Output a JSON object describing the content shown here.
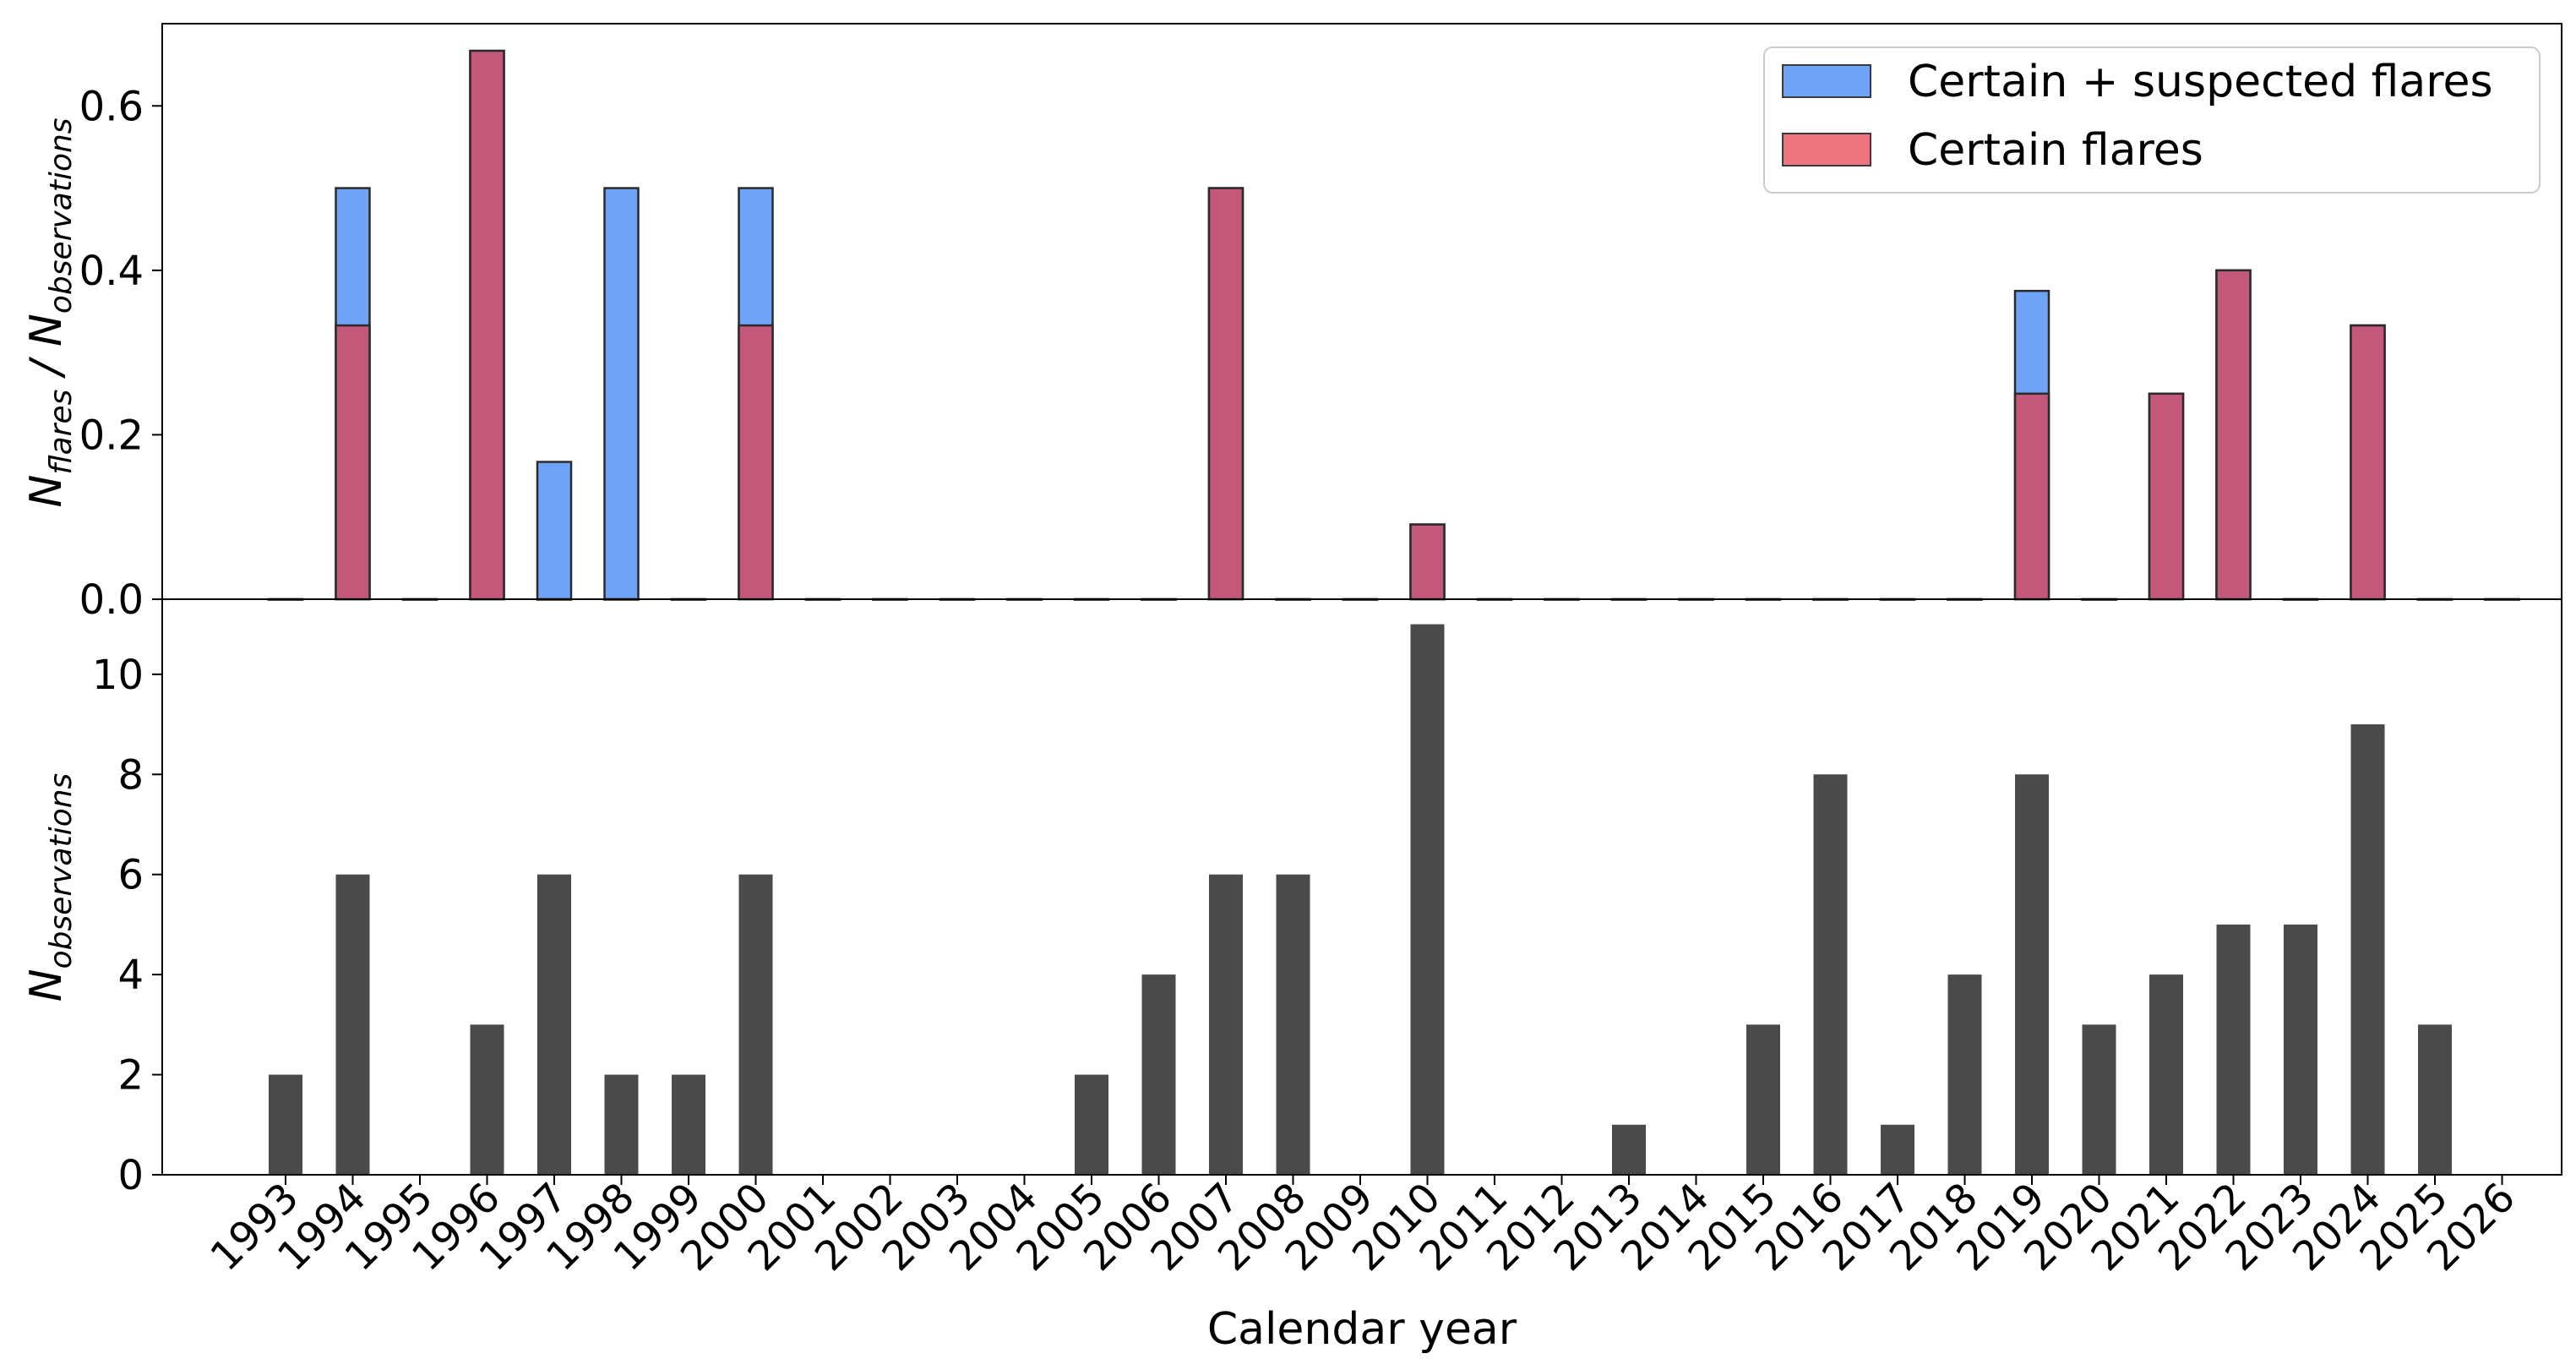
{
  "chart_data": [
    {
      "type": "bar",
      "panel": "top",
      "ylabel": "N_flares / N_observations",
      "ylim": [
        0,
        0.7
      ],
      "yticks": [
        "0.0",
        "0.2",
        "0.4",
        "0.6"
      ],
      "categories": [
        "1993",
        "1994",
        "1995",
        "1996",
        "1997",
        "1998",
        "1999",
        "2000",
        "2001",
        "2002",
        "2003",
        "2004",
        "2005",
        "2006",
        "2007",
        "2008",
        "2009",
        "2010",
        "2011",
        "2012",
        "2013",
        "2014",
        "2015",
        "2016",
        "2017",
        "2018",
        "2019",
        "2020",
        "2021",
        "2022",
        "2023",
        "2024",
        "2025",
        "2026"
      ],
      "series": [
        {
          "name": "Certain + suspected flares",
          "color": "#6ea3f5",
          "values": [
            0,
            0.5,
            0,
            0.667,
            0.167,
            0.5,
            0,
            0.5,
            0,
            0,
            0,
            0,
            0,
            0,
            0.5,
            0,
            0,
            0.0909,
            0,
            0,
            0,
            0,
            0,
            0,
            0,
            0,
            0.375,
            0,
            0.25,
            0.4,
            0,
            0.333,
            0,
            0
          ]
        },
        {
          "name": "Certain flares",
          "color": "#c4587b",
          "values": [
            0,
            0.333,
            0,
            0.667,
            0,
            0,
            0,
            0.333,
            0,
            0,
            0,
            0,
            0,
            0,
            0.5,
            0,
            0,
            0.0909,
            0,
            0,
            0,
            0,
            0,
            0,
            0,
            0,
            0.25,
            0,
            0.25,
            0.4,
            0,
            0.333,
            0,
            0
          ]
        }
      ],
      "legend": {
        "position": "top-right",
        "items": [
          {
            "label": "Certain + suspected flares",
            "color": "#6ea3f5"
          },
          {
            "label": "Certain flares",
            "color": "#ee747f"
          }
        ]
      }
    },
    {
      "type": "bar",
      "panel": "bottom",
      "xlabel": "Calendar year",
      "ylabel": "N_observations",
      "ylim": [
        0,
        11.5
      ],
      "yticks": [
        "0",
        "2",
        "4",
        "6",
        "8",
        "10"
      ],
      "categories": [
        "1993",
        "1994",
        "1995",
        "1996",
        "1997",
        "1998",
        "1999",
        "2000",
        "2001",
        "2002",
        "2003",
        "2004",
        "2005",
        "2006",
        "2007",
        "2008",
        "2009",
        "2010",
        "2011",
        "2012",
        "2013",
        "2014",
        "2015",
        "2016",
        "2017",
        "2018",
        "2019",
        "2020",
        "2021",
        "2022",
        "2023",
        "2024",
        "2025",
        "2026"
      ],
      "series": [
        {
          "color": "#4a4a4a",
          "values": [
            2,
            6,
            0,
            3,
            6,
            2,
            2,
            6,
            0,
            0,
            0,
            0,
            2,
            4,
            6,
            6,
            0,
            11,
            0,
            0,
            1,
            0,
            3,
            8,
            1,
            4,
            8,
            3,
            4,
            5,
            5,
            9,
            3,
            0
          ]
        }
      ]
    }
  ],
  "labels": {
    "top_ylabel_main": "N",
    "top_ylabel_sub1": "flares",
    "top_ylabel_mid": " / N",
    "top_ylabel_sub2": "observations",
    "bottom_ylabel_main": "N",
    "bottom_ylabel_sub": "observations",
    "xlabel": "Calendar year"
  }
}
